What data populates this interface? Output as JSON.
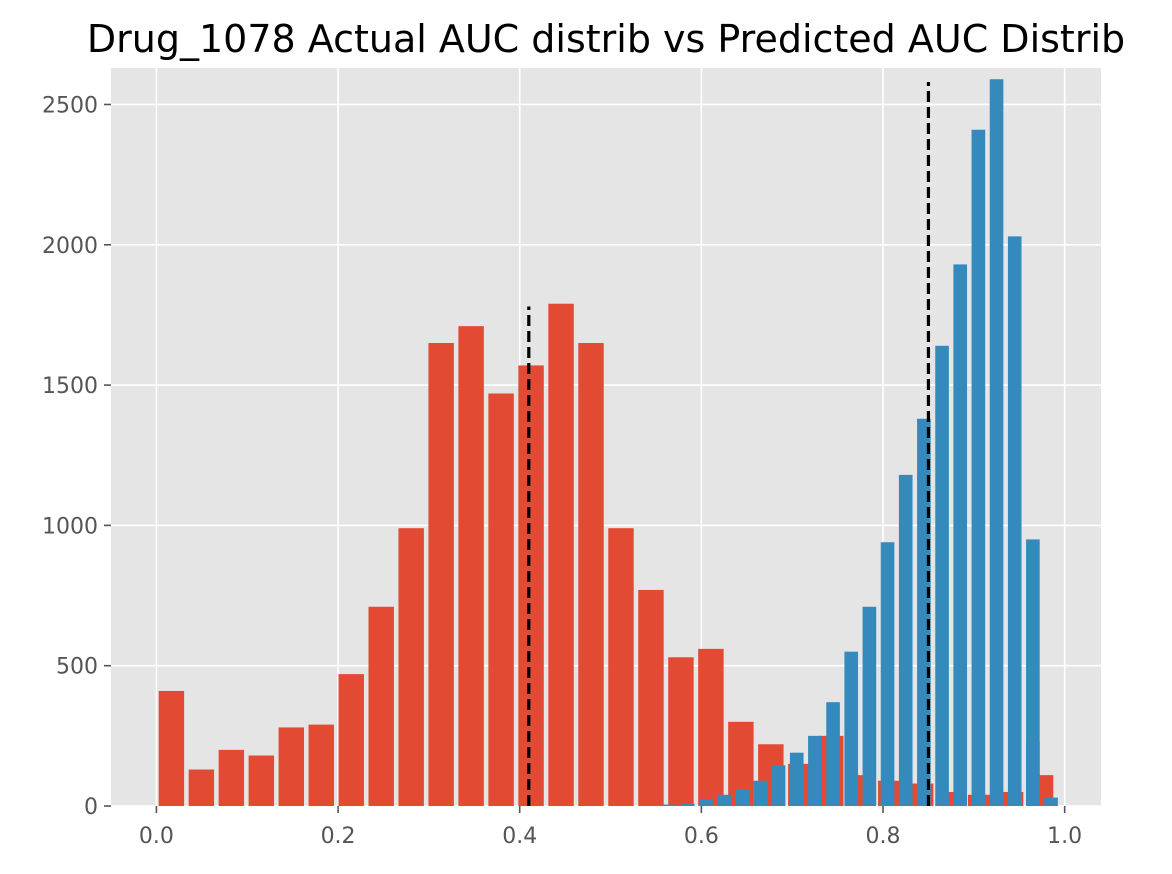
{
  "chart_data": {
    "type": "bar",
    "title": "Drug_1078 Actual AUC distrib vs Predicted AUC Distrib",
    "xlabel": "",
    "ylabel": "",
    "xlim": [
      -0.05,
      1.04
    ],
    "ylim": [
      0,
      2630
    ],
    "grid": true,
    "x_ticks": [
      {
        "value": 0.0,
        "label": "0.0"
      },
      {
        "value": 0.2,
        "label": "0.2"
      },
      {
        "value": 0.4,
        "label": "0.4"
      },
      {
        "value": 0.6,
        "label": "0.6"
      },
      {
        "value": 0.8,
        "label": "0.8"
      },
      {
        "value": 1.0,
        "label": "1.0"
      }
    ],
    "y_ticks": [
      {
        "value": 0,
        "label": "0"
      },
      {
        "value": 500,
        "label": "500"
      },
      {
        "value": 1000,
        "label": "1000"
      },
      {
        "value": 1500,
        "label": "1500"
      },
      {
        "value": 2000,
        "label": "2000"
      },
      {
        "value": 2500,
        "label": "2500"
      }
    ],
    "series": [
      {
        "color": "#E24A33",
        "bin_width": 0.033,
        "bin_starts": [
          0.0,
          0.033,
          0.066,
          0.099,
          0.132,
          0.165,
          0.198,
          0.231,
          0.264,
          0.297,
          0.33,
          0.363,
          0.396,
          0.429,
          0.462,
          0.495,
          0.528,
          0.561,
          0.594,
          0.627,
          0.66,
          0.693,
          0.726,
          0.759,
          0.792,
          0.825,
          0.858,
          0.891,
          0.924,
          0.957
        ],
        "values": [
          410,
          130,
          200,
          180,
          280,
          290,
          470,
          710,
          990,
          1650,
          1710,
          1470,
          1570,
          1790,
          1650,
          990,
          770,
          530,
          560,
          300,
          220,
          150,
          250,
          110,
          90,
          80,
          50,
          40,
          50,
          110
        ]
      },
      {
        "color": "#348ABD",
        "bin_width": 0.02,
        "bin_starts": [
          0.555,
          0.575,
          0.595,
          0.615,
          0.635,
          0.655,
          0.675,
          0.695,
          0.715,
          0.735,
          0.755,
          0.775,
          0.795,
          0.815,
          0.835,
          0.855,
          0.875,
          0.895,
          0.915,
          0.935,
          0.955
        ],
        "values": [
          5,
          8,
          25,
          40,
          60,
          90,
          145,
          190,
          250,
          370,
          550,
          710,
          940,
          1180,
          1380,
          1640,
          1930,
          2410,
          2590,
          2030,
          950
        ]
      }
    ],
    "extra_bars": [
      {
        "color": "#348ABD",
        "x_start": 0.955,
        "width": 0.02,
        "value": 230
      },
      {
        "color": "#348ABD",
        "x_start": 0.975,
        "width": 0.02,
        "value": 30
      }
    ],
    "reference_lines": [
      {
        "x": 0.41,
        "y_top": 1780,
        "color": "#000000",
        "style": "dashed"
      },
      {
        "x": 0.85,
        "y_top": 2580,
        "color": "#000000",
        "style": "dashed"
      }
    ]
  }
}
